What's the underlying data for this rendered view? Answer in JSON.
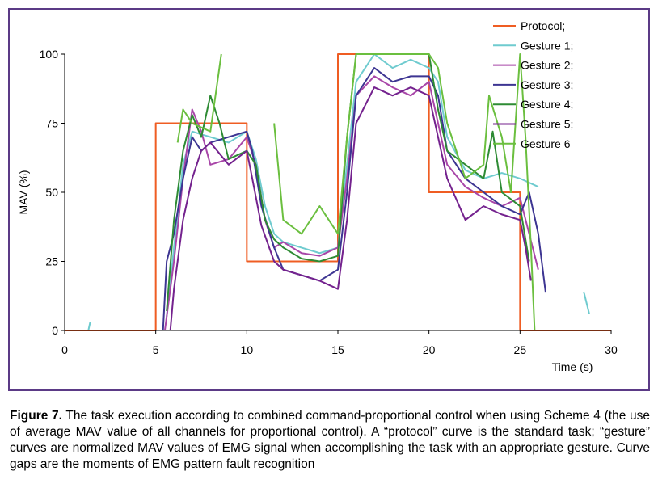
{
  "chart_data": {
    "type": "line",
    "xlabel": "Time (s)",
    "ylabel": "MAV (%)",
    "xlim": [
      0,
      30
    ],
    "ylim": [
      0,
      100
    ],
    "xticks": [
      0,
      5,
      10,
      15,
      20,
      25,
      30
    ],
    "yticks": [
      0,
      25,
      50,
      75,
      100
    ],
    "legend_position": "top-right",
    "grid": false,
    "series": [
      {
        "name": "Protocol;",
        "color": "#ef5d23",
        "points": [
          [
            0,
            0
          ],
          [
            5,
            0
          ],
          [
            5,
            75
          ],
          [
            10,
            75
          ],
          [
            10,
            25
          ],
          [
            15,
            25
          ],
          [
            15,
            100
          ],
          [
            20,
            100
          ],
          [
            20,
            50
          ],
          [
            25,
            50
          ],
          [
            25,
            0
          ],
          [
            30,
            0
          ]
        ]
      },
      {
        "name": "Gesture 1;",
        "color": "#6fcbcf",
        "points": [
          [
            1.3,
            0
          ],
          [
            1.4,
            3
          ],
          [
            null,
            null
          ],
          [
            5.6,
            5
          ],
          [
            6,
            30
          ],
          [
            6.5,
            60
          ],
          [
            7,
            72
          ],
          [
            8,
            70
          ],
          [
            9,
            68
          ],
          [
            10,
            72
          ],
          [
            10.5,
            62
          ],
          [
            11,
            45
          ],
          [
            11.5,
            35
          ],
          [
            12,
            32
          ],
          [
            13,
            30
          ],
          [
            14,
            28
          ],
          [
            15,
            30
          ],
          [
            15.5,
            60
          ],
          [
            16,
            90
          ],
          [
            17,
            100
          ],
          [
            18,
            95
          ],
          [
            19,
            98
          ],
          [
            20,
            95
          ],
          [
            20.5,
            90
          ],
          [
            21,
            70
          ],
          [
            22,
            58
          ],
          [
            23,
            55
          ],
          [
            24,
            57
          ],
          [
            25,
            55
          ],
          [
            26,
            52
          ],
          [
            null,
            null
          ],
          [
            28.5,
            14
          ],
          [
            28.8,
            6
          ]
        ]
      },
      {
        "name": "Gesture 2;",
        "color": "#a846a8",
        "points": [
          [
            5.5,
            0
          ],
          [
            6,
            25
          ],
          [
            6.5,
            55
          ],
          [
            7,
            80
          ],
          [
            7.5,
            72
          ],
          [
            8,
            60
          ],
          [
            9,
            62
          ],
          [
            10,
            70
          ],
          [
            10.5,
            60
          ],
          [
            11,
            40
          ],
          [
            11.5,
            30
          ],
          [
            12,
            32
          ],
          [
            13,
            28
          ],
          [
            14,
            27
          ],
          [
            15,
            30
          ],
          [
            15.5,
            55
          ],
          [
            16,
            85
          ],
          [
            17,
            92
          ],
          [
            18,
            88
          ],
          [
            19,
            85
          ],
          [
            20,
            90
          ],
          [
            20.5,
            75
          ],
          [
            21,
            60
          ],
          [
            22,
            52
          ],
          [
            23,
            48
          ],
          [
            24,
            45
          ],
          [
            25,
            48
          ],
          [
            25.5,
            35
          ],
          [
            26,
            22
          ]
        ]
      },
      {
        "name": "Gesture 3;",
        "color": "#3d3592",
        "points": [
          [
            5.4,
            0
          ],
          [
            5.6,
            25
          ],
          [
            6,
            35
          ],
          [
            6.5,
            55
          ],
          [
            7,
            70
          ],
          [
            7.5,
            65
          ],
          [
            8,
            68
          ],
          [
            9,
            70
          ],
          [
            10,
            72
          ],
          [
            10.3,
            65
          ],
          [
            10.8,
            45
          ],
          [
            11.5,
            30
          ],
          [
            12,
            22
          ],
          [
            13,
            20
          ],
          [
            14,
            18
          ],
          [
            15,
            22
          ],
          [
            15.5,
            50
          ],
          [
            16,
            85
          ],
          [
            17,
            95
          ],
          [
            18,
            90
          ],
          [
            19,
            92
          ],
          [
            20,
            92
          ],
          [
            20.5,
            85
          ],
          [
            21,
            65
          ],
          [
            22,
            55
          ],
          [
            23,
            50
          ],
          [
            24,
            45
          ],
          [
            25,
            42
          ],
          [
            25.5,
            50
          ],
          [
            26,
            35
          ],
          [
            26.4,
            14
          ]
        ]
      },
      {
        "name": "Gesture 4;",
        "color": "#2e8b34",
        "points": [
          [
            5.6,
            7
          ],
          [
            6,
            40
          ],
          [
            6.5,
            65
          ],
          [
            7,
            78
          ],
          [
            7.5,
            70
          ],
          [
            8,
            85
          ],
          [
            8.5,
            75
          ],
          [
            9,
            62
          ],
          [
            10,
            65
          ],
          [
            10.5,
            60
          ],
          [
            11,
            40
          ],
          [
            11.5,
            33
          ],
          [
            12,
            30
          ],
          [
            13,
            26
          ],
          [
            14,
            25
          ],
          [
            15,
            27
          ],
          [
            15.5,
            70
          ],
          [
            16,
            100
          ],
          [
            17,
            100
          ],
          [
            18,
            100
          ],
          [
            19,
            100
          ],
          [
            20,
            100
          ],
          [
            20.5,
            80
          ],
          [
            21,
            65
          ],
          [
            22,
            60
          ],
          [
            23,
            55
          ],
          [
            23.5,
            72
          ],
          [
            24,
            50
          ],
          [
            25,
            45
          ],
          [
            25.5,
            25
          ]
        ]
      },
      {
        "name": "Gesture 5;",
        "color": "#74228e",
        "points": [
          [
            5.8,
            0
          ],
          [
            6,
            15
          ],
          [
            6.5,
            40
          ],
          [
            7,
            55
          ],
          [
            7.5,
            65
          ],
          [
            8,
            68
          ],
          [
            9,
            60
          ],
          [
            10,
            65
          ],
          [
            10.3,
            55
          ],
          [
            10.8,
            38
          ],
          [
            11.5,
            25
          ],
          [
            12,
            22
          ],
          [
            13,
            20
          ],
          [
            14,
            18
          ],
          [
            15,
            15
          ],
          [
            15.5,
            40
          ],
          [
            16,
            75
          ],
          [
            17,
            88
          ],
          [
            18,
            85
          ],
          [
            19,
            88
          ],
          [
            20,
            85
          ],
          [
            20.5,
            70
          ],
          [
            21,
            55
          ],
          [
            22,
            40
          ],
          [
            23,
            45
          ],
          [
            24,
            42
          ],
          [
            25,
            40
          ],
          [
            25.3,
            30
          ],
          [
            25.6,
            18
          ]
        ]
      },
      {
        "name": "Gesture 6",
        "color": "#6bbf3f",
        "points": [
          [
            6.2,
            68
          ],
          [
            6.5,
            80
          ],
          [
            7,
            75
          ],
          [
            8,
            72
          ],
          [
            8.6,
            100
          ],
          [
            null,
            null
          ],
          [
            11.5,
            75
          ],
          [
            12,
            40
          ],
          [
            13,
            35
          ],
          [
            14,
            45
          ],
          [
            15,
            35
          ],
          [
            15.5,
            70
          ],
          [
            16,
            100
          ],
          [
            17,
            100
          ],
          [
            18,
            100
          ],
          [
            19,
            100
          ],
          [
            20,
            100
          ],
          [
            20.5,
            95
          ],
          [
            21,
            75
          ],
          [
            22,
            55
          ],
          [
            23,
            60
          ],
          [
            23.3,
            85
          ],
          [
            24,
            70
          ],
          [
            24.5,
            50
          ],
          [
            25,
            100
          ],
          [
            25.3,
            70
          ],
          [
            25.6,
            30
          ],
          [
            25.8,
            0
          ]
        ]
      }
    ]
  },
  "caption": {
    "label": "Figure 7.",
    "text": " The task execution according to combined command-proportional control when using Scheme 4 (the use of average MAV value of all channels for proportional control). A “protocol” curve is the standard task; “gesture” curves are normalized MAV values of EMG signal when accomplishing the task with an appropriate gesture. Curve gaps are the moments of EMG pattern fault recognition"
  }
}
